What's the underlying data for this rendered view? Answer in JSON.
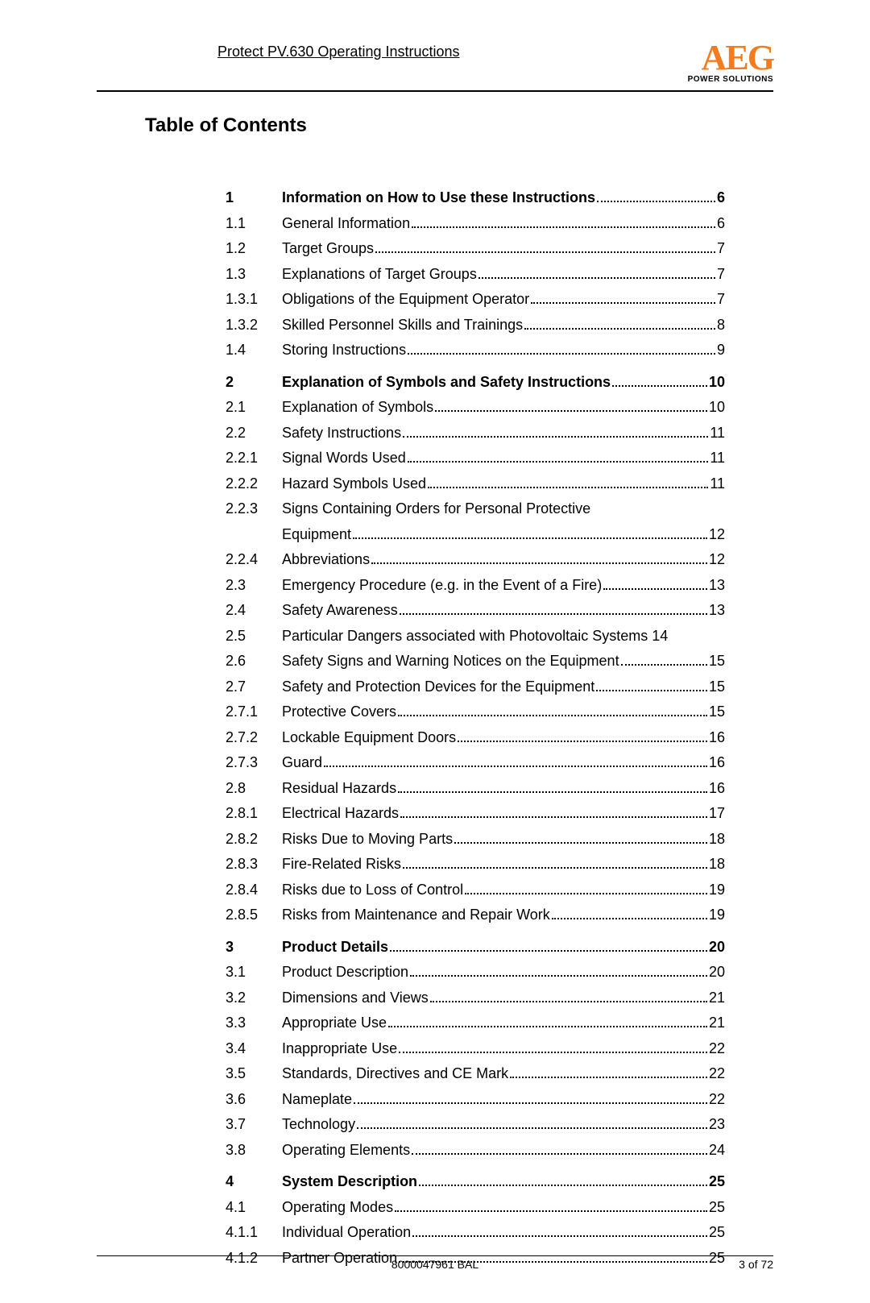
{
  "document": {
    "header_title": "Protect PV.630 Operating Instructions",
    "logo_main": "AEG",
    "logo_sub": "POWER SOLUTIONS",
    "toc_heading": "Table of Contents",
    "footer_center": "8000047961 BAL",
    "footer_right": "3 of 72"
  },
  "colors": {
    "logo_orange": "#f47c20",
    "text": "#000000",
    "background": "#ffffff"
  },
  "toc": [
    {
      "num": "1",
      "title": "Information on How to Use these Instructions",
      "page": "6",
      "bold": true
    },
    {
      "num": "1.1",
      "title": "General Information",
      "page": "6"
    },
    {
      "num": "1.2",
      "title": "Target Groups",
      "page": "7"
    },
    {
      "num": "1.3",
      "title": "Explanations of Target Groups",
      "page": "7"
    },
    {
      "num": "1.3.1",
      "title": "Obligations of the Equipment Operator",
      "page": "7"
    },
    {
      "num": "1.3.2",
      "title": "Skilled Personnel Skills and Trainings",
      "page": "8"
    },
    {
      "num": "1.4",
      "title": "Storing Instructions",
      "page": "9"
    },
    {
      "gap": true
    },
    {
      "num": "2",
      "title": "Explanation of Symbols and Safety Instructions",
      "page": "10",
      "bold": true
    },
    {
      "num": "2.1",
      "title": "Explanation of Symbols",
      "page": "10"
    },
    {
      "num": "2.2",
      "title": "Safety Instructions",
      "page": "11"
    },
    {
      "num": "2.2.1",
      "title": "Signal Words Used",
      "page": "11"
    },
    {
      "num": "2.2.2",
      "title": "Hazard Symbols Used",
      "page": "11"
    },
    {
      "num": "2.2.3",
      "title_line1": "Signs Containing Orders for Personal Protective",
      "title_line2": "Equipment",
      "page": "12",
      "wrap": true
    },
    {
      "num": "2.2.4",
      "title": "Abbreviations",
      "page": "12"
    },
    {
      "num": "2.3",
      "title": "Emergency Procedure (e.g. in the Event of a Fire)",
      "page": "13"
    },
    {
      "num": "2.4",
      "title": "Safety Awareness",
      "page": "13"
    },
    {
      "num": "2.5",
      "title": "Particular Dangers associated with Photovoltaic Systems",
      "page": "14",
      "nodots": true
    },
    {
      "num": "2.6",
      "title": "Safety Signs and Warning Notices on the Equipment",
      "page": "15"
    },
    {
      "num": "2.7",
      "title": "Safety and Protection Devices for the Equipment",
      "page": "15"
    },
    {
      "num": "2.7.1",
      "title": "Protective Covers",
      "page": "15"
    },
    {
      "num": "2.7.2",
      "title": "Lockable Equipment Doors",
      "page": "16"
    },
    {
      "num": "2.7.3",
      "title": "Guard",
      "page": "16"
    },
    {
      "num": "2.8",
      "title": "Residual Hazards",
      "page": "16"
    },
    {
      "num": "2.8.1",
      "title": "Electrical Hazards",
      "page": "17"
    },
    {
      "num": "2.8.2",
      "title": "Risks Due to Moving Parts",
      "page": "18"
    },
    {
      "num": "2.8.3",
      "title": "Fire-Related Risks",
      "page": "18"
    },
    {
      "num": "2.8.4",
      "title": "Risks due to Loss of Control",
      "page": "19"
    },
    {
      "num": "2.8.5",
      "title": "Risks from Maintenance and Repair Work",
      "page": "19"
    },
    {
      "gap": true
    },
    {
      "num": "3",
      "title": "Product Details",
      "page": "20",
      "bold": true
    },
    {
      "num": "3.1",
      "title": "Product Description",
      "page": "20"
    },
    {
      "num": "3.2",
      "title": "Dimensions and Views",
      "page": "21"
    },
    {
      "num": "3.3",
      "title": "Appropriate Use",
      "page": "21"
    },
    {
      "num": "3.4",
      "title": "Inappropriate Use",
      "page": "22"
    },
    {
      "num": "3.5",
      "title": "Standards, Directives and CE Mark",
      "page": "22"
    },
    {
      "num": "3.6",
      "title": "Nameplate",
      "page": "22"
    },
    {
      "num": "3.7",
      "title": "Technology",
      "page": "23"
    },
    {
      "num": "3.8",
      "title": "Operating Elements",
      "page": "24"
    },
    {
      "gap": true
    },
    {
      "num": "4",
      "title": "System Description",
      "page": "25",
      "bold": true
    },
    {
      "num": "4.1",
      "title": "Operating Modes",
      "page": "25"
    },
    {
      "num": "4.1.1",
      "title": "Individual Operation",
      "page": "25"
    },
    {
      "num": "4.1.2",
      "title": "Partner Operation",
      "page": "25"
    }
  ]
}
